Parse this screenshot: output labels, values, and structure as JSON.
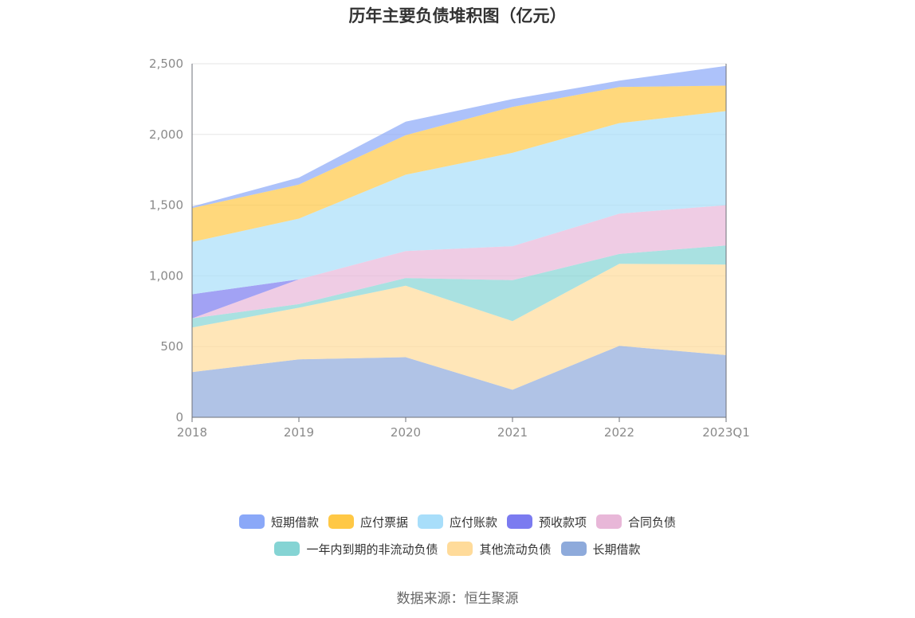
{
  "chart_data": {
    "type": "area",
    "stacked": true,
    "title": "历年主要负债堆积图（亿元）",
    "categories": [
      "2018",
      "2019",
      "2020",
      "2021",
      "2022",
      "2023Q1"
    ],
    "ylim": [
      0,
      2500
    ],
    "yticks": [
      "0",
      "500",
      "1,000",
      "1,500",
      "2,000",
      "2,500"
    ],
    "grid": true,
    "legend_position": "bottom",
    "series": [
      {
        "name": "长期借款",
        "color": "#8eaadb",
        "values": [
          320,
          410,
          425,
          195,
          505,
          440
        ]
      },
      {
        "name": "其他流动负债",
        "color": "#ffdb9a",
        "values": [
          315,
          365,
          505,
          485,
          580,
          640
        ]
      },
      {
        "name": "一年内到期的非流动负债",
        "color": "#85d4d4",
        "values": [
          65,
          25,
          55,
          290,
          70,
          135
        ]
      },
      {
        "name": "合同负债",
        "color": "#e8b7d8",
        "values": [
          0,
          175,
          190,
          240,
          285,
          285
        ]
      },
      {
        "name": "预收款项",
        "color": "#7b7bf0",
        "values": [
          170,
          0,
          0,
          0,
          0,
          0
        ]
      },
      {
        "name": "应付账款",
        "color": "#a8defa",
        "values": [
          370,
          430,
          540,
          660,
          640,
          665
        ]
      },
      {
        "name": "应付票据",
        "color": "#ffc845",
        "values": [
          240,
          240,
          280,
          325,
          255,
          180
        ]
      },
      {
        "name": "短期借款",
        "color": "#8aa8f8",
        "values": [
          10,
          50,
          95,
          55,
          45,
          140
        ]
      }
    ]
  },
  "legend": {
    "row1": [
      {
        "name": "短期借款",
        "color": "#8aa8f8"
      },
      {
        "name": "应付票据",
        "color": "#ffc845"
      },
      {
        "name": "应付账款",
        "color": "#a8defa"
      },
      {
        "name": "预收款项",
        "color": "#7b7bf0"
      },
      {
        "name": "合同负债",
        "color": "#e8b7d8"
      }
    ],
    "row2": [
      {
        "name": "一年内到期的非流动负债",
        "color": "#85d4d4"
      },
      {
        "name": "其他流动负债",
        "color": "#ffdb9a"
      },
      {
        "name": "长期借款",
        "color": "#8eaadb"
      }
    ]
  },
  "source": "数据来源：恒生聚源"
}
